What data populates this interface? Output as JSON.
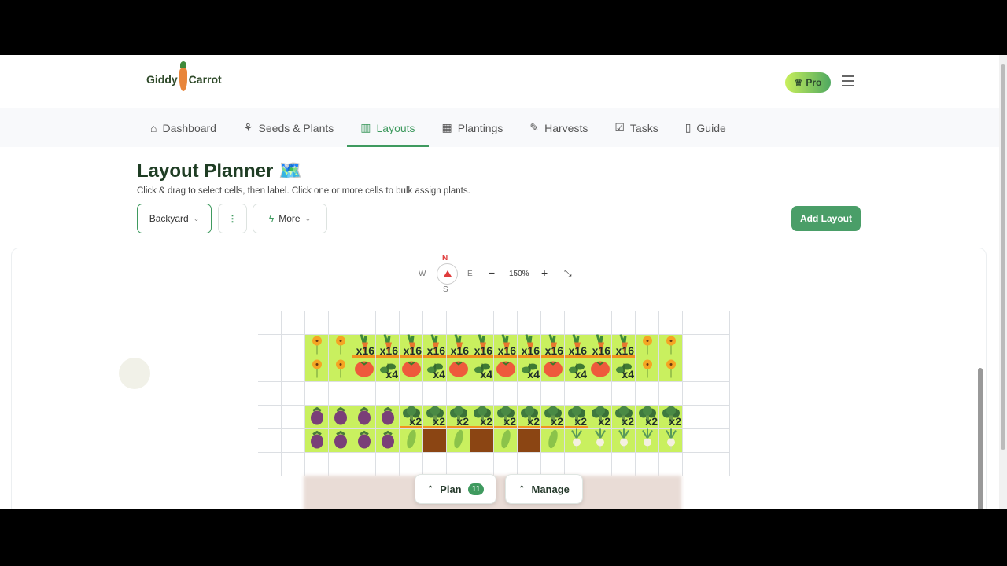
{
  "brand": {
    "name_left": "Giddy",
    "name_right": "Carrot"
  },
  "header": {
    "pro_label": "Pro"
  },
  "nav": {
    "items": [
      {
        "label": "Dashboard",
        "icon": "home-icon",
        "glyph": "⌂"
      },
      {
        "label": "Seeds & Plants",
        "icon": "sprout-icon",
        "glyph": "⚘"
      },
      {
        "label": "Layouts",
        "icon": "map-icon",
        "glyph": "▥",
        "active": true
      },
      {
        "label": "Plantings",
        "icon": "calendar-icon",
        "glyph": "▦"
      },
      {
        "label": "Harvests",
        "icon": "carrot-icon",
        "glyph": "✎"
      },
      {
        "label": "Tasks",
        "icon": "checkbox-icon",
        "glyph": "☑"
      },
      {
        "label": "Guide",
        "icon": "book-icon",
        "glyph": "▯"
      }
    ]
  },
  "page": {
    "title": "Layout Planner",
    "title_emoji": "🗺️",
    "subtitle": "Click & drag to select cells, then label. Click one or more cells to bulk assign plants."
  },
  "controls": {
    "layout_select": "Backyard",
    "more_label": "More",
    "add_layout": "Add Layout"
  },
  "toolbar": {
    "n": "N",
    "s": "S",
    "w": "W",
    "e": "E",
    "zoom": "150%",
    "zoom_out": "−",
    "zoom_in": "+"
  },
  "bottom": {
    "plan_label": "Plan",
    "plan_count": "11",
    "manage_label": "Manage"
  },
  "colors": {
    "accent": "#3f9a5f",
    "planted": "#c9f05f",
    "soil": "#8b4513",
    "bar": "#f0931f"
  },
  "grid": {
    "columns": 20,
    "rows": [
      [],
      [
        {
          "c": 2,
          "plant": "flower"
        },
        {
          "c": 3,
          "plant": "flower"
        },
        {
          "c": 4,
          "plant": "carrot",
          "count": "x16",
          "bar": true
        },
        {
          "c": 5,
          "plant": "carrot",
          "count": "x16",
          "bar": true
        },
        {
          "c": 6,
          "plant": "carrot",
          "count": "x16",
          "bar": true
        },
        {
          "c": 7,
          "plant": "carrot",
          "count": "x16",
          "bar": true
        },
        {
          "c": 8,
          "plant": "carrot",
          "count": "x16",
          "bar": true
        },
        {
          "c": 9,
          "plant": "carrot",
          "count": "x16",
          "bar": true
        },
        {
          "c": 10,
          "plant": "carrot",
          "count": "x16",
          "bar": true
        },
        {
          "c": 11,
          "plant": "carrot",
          "count": "x16",
          "bar": true
        },
        {
          "c": 12,
          "plant": "carrot",
          "count": "x16",
          "bar": true
        },
        {
          "c": 13,
          "plant": "carrot",
          "count": "x16",
          "bar": true
        },
        {
          "c": 14,
          "plant": "carrot",
          "count": "x16",
          "bar": true
        },
        {
          "c": 15,
          "plant": "carrot",
          "count": "x16",
          "bar": true
        },
        {
          "c": 16,
          "plant": "flower"
        },
        {
          "c": 17,
          "plant": "flower"
        }
      ],
      [
        {
          "c": 2,
          "plant": "flower"
        },
        {
          "c": 3,
          "plant": "flower"
        },
        {
          "c": 4,
          "plant": "tomato"
        },
        {
          "c": 5,
          "plant": "basil",
          "count": "x4"
        },
        {
          "c": 6,
          "plant": "tomato"
        },
        {
          "c": 7,
          "plant": "basil",
          "count": "x4"
        },
        {
          "c": 8,
          "plant": "tomato"
        },
        {
          "c": 9,
          "plant": "basil",
          "count": "x4"
        },
        {
          "c": 10,
          "plant": "tomato"
        },
        {
          "c": 11,
          "plant": "basil",
          "count": "x4"
        },
        {
          "c": 12,
          "plant": "tomato"
        },
        {
          "c": 13,
          "plant": "basil",
          "count": "x4"
        },
        {
          "c": 14,
          "plant": "tomato"
        },
        {
          "c": 15,
          "plant": "basil",
          "count": "x4"
        },
        {
          "c": 16,
          "plant": "flower"
        },
        {
          "c": 17,
          "plant": "flower"
        }
      ],
      [],
      [
        {
          "c": 2,
          "plant": "eggplant"
        },
        {
          "c": 3,
          "plant": "eggplant"
        },
        {
          "c": 4,
          "plant": "eggplant"
        },
        {
          "c": 5,
          "plant": "eggplant"
        },
        {
          "c": 6,
          "plant": "broccoli",
          "count": "x2",
          "bar": true
        },
        {
          "c": 7,
          "plant": "broccoli",
          "count": "x2",
          "bar": true
        },
        {
          "c": 8,
          "plant": "broccoli",
          "count": "x2",
          "bar": true
        },
        {
          "c": 9,
          "plant": "broccoli",
          "count": "x2",
          "bar": true
        },
        {
          "c": 10,
          "plant": "broccoli",
          "count": "x2",
          "bar": true
        },
        {
          "c": 11,
          "plant": "broccoli",
          "count": "x2",
          "bar": true
        },
        {
          "c": 12,
          "plant": "broccoli",
          "count": "x2",
          "bar": true
        },
        {
          "c": 13,
          "plant": "broccoli",
          "count": "x2",
          "bar": true
        },
        {
          "c": 14,
          "plant": "broccoli",
          "count": "x2"
        },
        {
          "c": 15,
          "plant": "broccoli",
          "count": "x2"
        },
        {
          "c": 16,
          "plant": "broccoli",
          "count": "x2"
        },
        {
          "c": 17,
          "plant": "broccoli",
          "count": "x2"
        }
      ],
      [
        {
          "c": 2,
          "plant": "eggplant"
        },
        {
          "c": 3,
          "plant": "eggplant"
        },
        {
          "c": 4,
          "plant": "eggplant"
        },
        {
          "c": 5,
          "plant": "eggplant"
        },
        {
          "c": 6,
          "plant": "cucumber"
        },
        {
          "c": 7,
          "plant": "soil"
        },
        {
          "c": 8,
          "plant": "cucumber"
        },
        {
          "c": 9,
          "plant": "soil"
        },
        {
          "c": 10,
          "plant": "cucumber"
        },
        {
          "c": 11,
          "plant": "soil"
        },
        {
          "c": 12,
          "plant": "cucumber"
        },
        {
          "c": 13,
          "plant": "turnip"
        },
        {
          "c": 14,
          "plant": "turnip"
        },
        {
          "c": 15,
          "plant": "turnip"
        },
        {
          "c": 16,
          "plant": "turnip"
        },
        {
          "c": 17,
          "plant": "turnip"
        }
      ],
      []
    ]
  }
}
